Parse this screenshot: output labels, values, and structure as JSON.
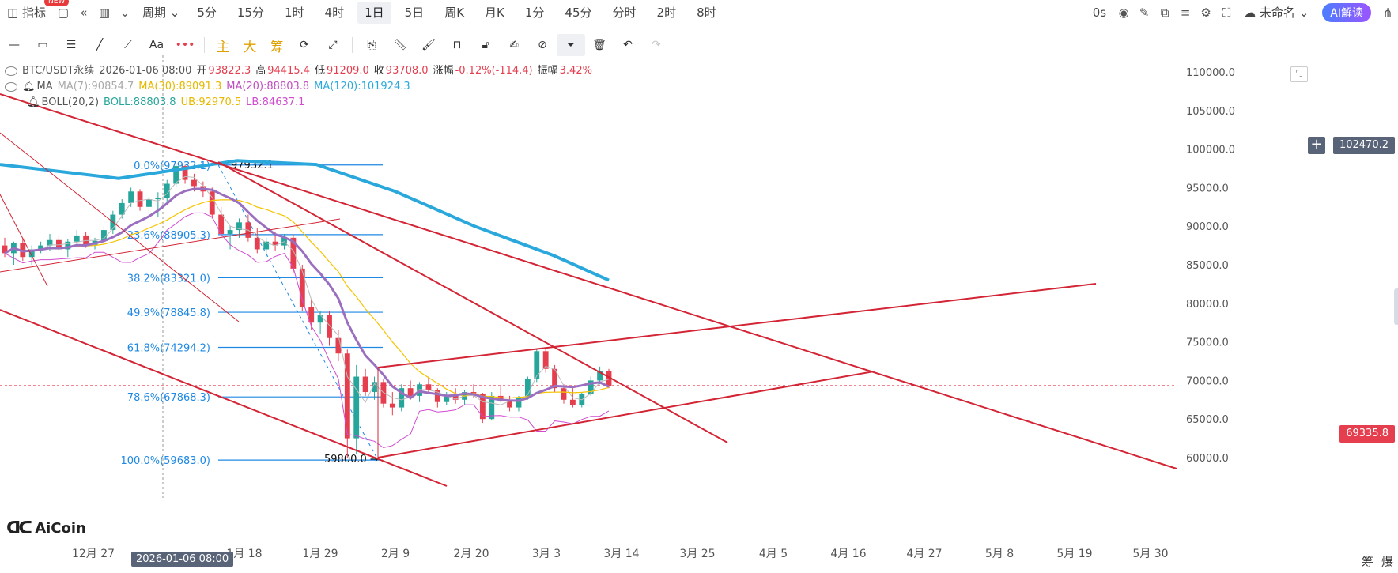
{
  "topbar": {
    "indicator_label": "指标",
    "new_badge": "NEW",
    "period_label": "周期",
    "intervals": [
      "5分",
      "15分",
      "1时",
      "4时",
      "1日",
      "5日",
      "周K",
      "月K",
      "1分",
      "45分",
      "分时",
      "2时",
      "8时"
    ],
    "active_interval": "1日",
    "timer": "0s",
    "account_label": "未命名",
    "ai_label": "AI解读"
  },
  "toolbar2": {
    "text_tool": "Aa",
    "main_label": "主",
    "big_label": "大",
    "chip_label": "筹"
  },
  "legend": {
    "symbol": "BTC/USDT永续",
    "datetime": "2026-01-06 08:00",
    "open_label": "开",
    "open": "93822.3",
    "high_label": "高",
    "high": "94415.4",
    "low_label": "低",
    "low": "91209.0",
    "close_label": "收",
    "close": "93708.0",
    "change_label": "涨幅",
    "change": "-0.12%(-114.4)",
    "amp_label": "振幅",
    "amp": "3.42%",
    "ma_label": "MA",
    "ma7": "MA(7):90854.7",
    "ma30": "MA(30):89091.3",
    "ma20": "MA(20):88803.8",
    "ma120": "MA(120):101924.3",
    "boll_label": "BOLL(20,2)",
    "boll": "BOLL:88803.8",
    "ub": "UB:92970.5",
    "lb": "LB:84637.1"
  },
  "price_tags": {
    "crosshair": "102470.2",
    "last": "69335.8"
  },
  "crosshair_date": "2026-01-06 08:00",
  "colors": {
    "up": "#26a69a",
    "down": "#e53e4e",
    "ma120": "#2aa8dc",
    "ma30": "#f5c400",
    "ma20": "#9b6fc0",
    "boll_lb": "#d04bd0",
    "fib": "#1e88e5",
    "trend": "#d32535"
  },
  "watermark": "AiCoin",
  "bottom_right": [
    "筹",
    "爆"
  ],
  "chart_data": {
    "type": "candlestick",
    "y_axis": [
      "110000.0",
      "105000.0",
      "100000.0",
      "95000.0",
      "90000.0",
      "85000.0",
      "80000.0",
      "75000.0",
      "70000.0",
      "65000.0",
      "60000.0"
    ],
    "ylim": [
      57500,
      112000
    ],
    "x_axis": [
      "12月 27",
      "1月 18",
      "1月 29",
      "2月 9",
      "2月 20",
      "3月 3",
      "3月 14",
      "3月 25",
      "4月 5",
      "4月 16",
      "4月 27",
      "5月 8",
      "5月 19",
      "5月 30"
    ],
    "fib_levels": [
      {
        "label": "0.0%(97932.1)",
        "value": 97932.1
      },
      {
        "label": "23.6%(88905.3)",
        "value": 88905.3
      },
      {
        "label": "38.2%(83321.0)",
        "value": 83321.0
      },
      {
        "label": "49.9%(78845.8)",
        "value": 78845.8
      },
      {
        "label": "61.8%(74294.2)",
        "value": 74294.2
      },
      {
        "label": "78.6%(67868.3)",
        "value": 67868.3
      },
      {
        "label": "100.0%(59683.0)",
        "value": 59683.0
      }
    ],
    "annotations": [
      {
        "text": "97932.1",
        "value": 97932.1
      },
      {
        "text": "59800.0 →",
        "value": 59800.0
      }
    ],
    "candles": [
      [
        87500,
        88500,
        86000,
        86500
      ],
      [
        86500,
        88000,
        85000,
        87800
      ],
      [
        87800,
        88500,
        85500,
        86000
      ],
      [
        86000,
        87500,
        85000,
        87000
      ],
      [
        87000,
        88000,
        86500,
        87500
      ],
      [
        87500,
        89000,
        86800,
        88200
      ],
      [
        88200,
        88800,
        86800,
        87000
      ],
      [
        87000,
        88300,
        86000,
        88000
      ],
      [
        88000,
        89500,
        87500,
        88800
      ],
      [
        88800,
        89200,
        87200,
        87600
      ],
      [
        87600,
        88500,
        87000,
        88100
      ],
      [
        88100,
        90000,
        87800,
        89500
      ],
      [
        89500,
        92000,
        89000,
        91500
      ],
      [
        91500,
        93500,
        91000,
        93000
      ],
      [
        93000,
        95000,
        92500,
        94500
      ],
      [
        94500,
        94800,
        92000,
        92500
      ],
      [
        92500,
        93800,
        91200,
        93500
      ],
      [
        93500,
        94400,
        91200,
        93700
      ],
      [
        93700,
        96000,
        93000,
        95500
      ],
      [
        95500,
        98000,
        95000,
        97800
      ],
      [
        97800,
        97932,
        95500,
        96000
      ],
      [
        96000,
        96800,
        94500,
        95200
      ],
      [
        95200,
        95800,
        93800,
        94500
      ],
      [
        94500,
        95000,
        91000,
        91500
      ],
      [
        91500,
        92500,
        88500,
        89000
      ],
      [
        89000,
        90000,
        87000,
        89500
      ],
      [
        89500,
        91000,
        88500,
        90500
      ],
      [
        90500,
        91500,
        88000,
        88500
      ],
      [
        88500,
        89800,
        86500,
        87000
      ],
      [
        87000,
        88500,
        86000,
        88000
      ],
      [
        88000,
        89200,
        86800,
        87500
      ],
      [
        87500,
        89000,
        87000,
        88500
      ],
      [
        88500,
        88900,
        84000,
        84500
      ],
      [
        84500,
        85000,
        79000,
        79500
      ],
      [
        79500,
        80500,
        76500,
        77500
      ],
      [
        77500,
        79000,
        76000,
        78500
      ],
      [
        78500,
        79000,
        74500,
        75500
      ],
      [
        75500,
        76500,
        72500,
        73500
      ],
      [
        73500,
        74000,
        60000,
        62500
      ],
      [
        62500,
        72000,
        60500,
        70500
      ],
      [
        70500,
        71500,
        68000,
        68500
      ],
      [
        68500,
        70500,
        67500,
        69800
      ],
      [
        69800,
        70200,
        66500,
        67000
      ],
      [
        67000,
        68500,
        65500,
        66500
      ],
      [
        66500,
        69500,
        66000,
        69000
      ],
      [
        69000,
        70000,
        67500,
        68000
      ],
      [
        68000,
        69800,
        67200,
        69500
      ],
      [
        69500,
        70500,
        68200,
        68800
      ],
      [
        68800,
        69000,
        66500,
        67200
      ],
      [
        67200,
        68500,
        66800,
        68000
      ],
      [
        68000,
        69000,
        67000,
        67500
      ],
      [
        67500,
        68800,
        66800,
        68500
      ],
      [
        68500,
        69500,
        67800,
        68200
      ],
      [
        68200,
        68400,
        64500,
        65000
      ],
      [
        65000,
        68500,
        64800,
        68000
      ],
      [
        68000,
        69200,
        67200,
        67500
      ],
      [
        67500,
        68000,
        66000,
        66500
      ],
      [
        66500,
        68000,
        66000,
        67800
      ],
      [
        67800,
        70500,
        67500,
        70200
      ],
      [
        70200,
        74000,
        69800,
        73800
      ],
      [
        73800,
        74200,
        71000,
        71500
      ],
      [
        71500,
        72000,
        68500,
        69000
      ],
      [
        69000,
        69500,
        67000,
        67500
      ],
      [
        67500,
        69000,
        66500,
        66800
      ],
      [
        66800,
        68500,
        66500,
        68200
      ],
      [
        68200,
        70500,
        68000,
        70000
      ],
      [
        70000,
        71800,
        69500,
        71200
      ],
      [
        71200,
        71500,
        69000,
        69300
      ]
    ]
  }
}
